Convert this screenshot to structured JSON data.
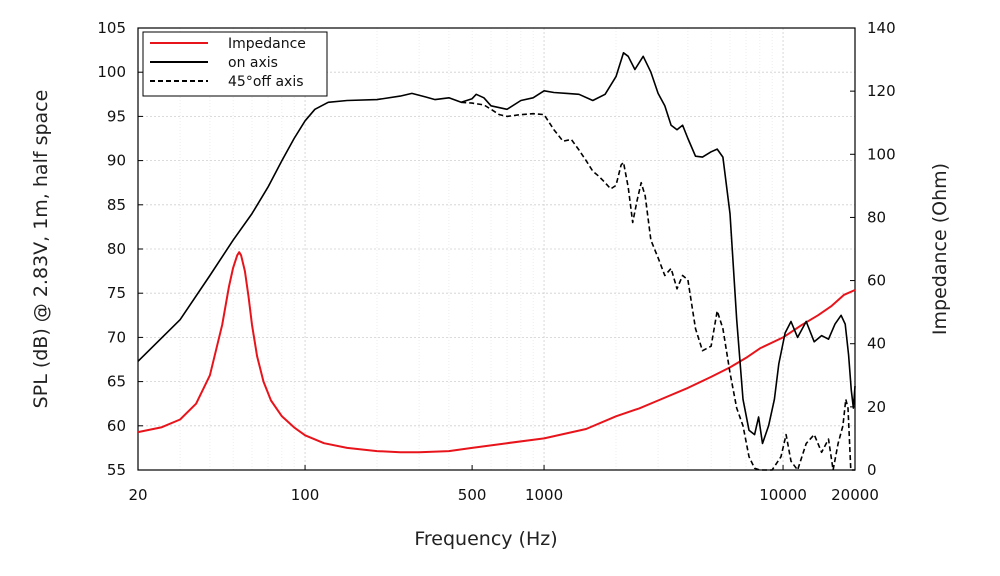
{
  "chart_data": {
    "type": "line",
    "title": "",
    "xlabel": "Frequency (Hz)",
    "ylabel_left": "SPL (dB) @ 2.83V, 1m, half space",
    "ylabel_right": "Impedance (Ohm)",
    "x_scale": "log",
    "xlim": [
      20,
      20000
    ],
    "ylim_left": [
      55,
      105
    ],
    "ylim_right": [
      0,
      140
    ],
    "grid": true,
    "legend_position": "top-left",
    "x_ticks": [
      {
        "value": 20,
        "label": "20"
      },
      {
        "value": 100,
        "label": "100"
      },
      {
        "value": 500,
        "label": "500"
      },
      {
        "value": 1000,
        "label": "1000"
      },
      {
        "value": 10000,
        "label": "10000"
      },
      {
        "value": 20000,
        "label": "20000"
      }
    ],
    "y_ticks_left": [
      "55",
      "60",
      "65",
      "70",
      "75",
      "80",
      "85",
      "90",
      "95",
      "100",
      "105"
    ],
    "y_ticks_right": [
      "0",
      "20",
      "40",
      "60",
      "80",
      "100",
      "120",
      "140"
    ],
    "series": [
      {
        "name": "Impedance",
        "axis": "right",
        "color": "#e8141b",
        "dash": "solid",
        "points": [
          [
            20,
            12
          ],
          [
            25,
            13.5
          ],
          [
            30,
            16
          ],
          [
            35,
            21
          ],
          [
            40,
            30
          ],
          [
            45,
            46
          ],
          [
            48,
            58
          ],
          [
            50,
            64
          ],
          [
            52,
            68
          ],
          [
            53,
            69
          ],
          [
            54,
            68
          ],
          [
            56,
            63
          ],
          [
            58,
            55
          ],
          [
            60,
            46
          ],
          [
            63,
            36
          ],
          [
            67,
            28
          ],
          [
            72,
            22
          ],
          [
            80,
            17
          ],
          [
            90,
            13.5
          ],
          [
            100,
            11
          ],
          [
            120,
            8.5
          ],
          [
            150,
            7
          ],
          [
            200,
            6
          ],
          [
            250,
            5.6
          ],
          [
            300,
            5.6
          ],
          [
            400,
            6
          ],
          [
            500,
            7
          ],
          [
            700,
            8.5
          ],
          [
            1000,
            10
          ],
          [
            1500,
            13
          ],
          [
            2000,
            17
          ],
          [
            2500,
            19.5
          ],
          [
            3000,
            22
          ],
          [
            4000,
            26
          ],
          [
            5000,
            29.5
          ],
          [
            6000,
            32.5
          ],
          [
            7000,
            35.5
          ],
          [
            8000,
            38.5
          ],
          [
            10000,
            42
          ],
          [
            12000,
            46
          ],
          [
            14000,
            49
          ],
          [
            16000,
            52
          ],
          [
            18000,
            55.5
          ],
          [
            20000,
            57
          ]
        ]
      },
      {
        "name": "on axis",
        "axis": "left",
        "color": "#000000",
        "dash": "solid",
        "points": [
          [
            20,
            67.3
          ],
          [
            30,
            72
          ],
          [
            40,
            77
          ],
          [
            50,
            81
          ],
          [
            60,
            84
          ],
          [
            70,
            87
          ],
          [
            80,
            90
          ],
          [
            90,
            92.5
          ],
          [
            100,
            94.5
          ],
          [
            110,
            95.8
          ],
          [
            125,
            96.6
          ],
          [
            150,
            96.8
          ],
          [
            200,
            96.9
          ],
          [
            250,
            97.3
          ],
          [
            280,
            97.6
          ],
          [
            320,
            97.2
          ],
          [
            350,
            96.9
          ],
          [
            400,
            97.1
          ],
          [
            450,
            96.6
          ],
          [
            500,
            97
          ],
          [
            520,
            97.5
          ],
          [
            560,
            97.1
          ],
          [
            600,
            96.2
          ],
          [
            700,
            95.8
          ],
          [
            800,
            96.8
          ],
          [
            900,
            97.1
          ],
          [
            1000,
            97.9
          ],
          [
            1100,
            97.7
          ],
          [
            1250,
            97.6
          ],
          [
            1400,
            97.5
          ],
          [
            1600,
            96.8
          ],
          [
            1800,
            97.5
          ],
          [
            2000,
            99.5
          ],
          [
            2150,
            102.2
          ],
          [
            2250,
            101.8
          ],
          [
            2400,
            100.3
          ],
          [
            2600,
            101.8
          ],
          [
            2800,
            100
          ],
          [
            3000,
            97.6
          ],
          [
            3200,
            96.2
          ],
          [
            3400,
            94
          ],
          [
            3600,
            93.5
          ],
          [
            3800,
            94
          ],
          [
            4000,
            92.5
          ],
          [
            4300,
            90.5
          ],
          [
            4600,
            90.4
          ],
          [
            5000,
            91
          ],
          [
            5300,
            91.3
          ],
          [
            5600,
            90.4
          ],
          [
            6000,
            84
          ],
          [
            6400,
            72
          ],
          [
            6800,
            63
          ],
          [
            7200,
            59.5
          ],
          [
            7600,
            59
          ],
          [
            7900,
            61
          ],
          [
            8200,
            58
          ],
          [
            8700,
            60
          ],
          [
            9200,
            63
          ],
          [
            9600,
            67
          ],
          [
            10200,
            70.5
          ],
          [
            10800,
            71.8
          ],
          [
            11500,
            70
          ],
          [
            12500,
            71.8
          ],
          [
            13500,
            69.5
          ],
          [
            14500,
            70.2
          ],
          [
            15500,
            69.8
          ],
          [
            16500,
            71.5
          ],
          [
            17500,
            72.5
          ],
          [
            18200,
            71.5
          ],
          [
            18800,
            68
          ],
          [
            19300,
            64
          ],
          [
            19700,
            62
          ],
          [
            20000,
            64.5
          ]
        ]
      },
      {
        "name": "45°off axis",
        "axis": "left",
        "color": "#000000",
        "dash": "dashed",
        "points": [
          [
            450,
            96.6
          ],
          [
            500,
            96.5
          ],
          [
            560,
            96.3
          ],
          [
            600,
            95.8
          ],
          [
            650,
            95.2
          ],
          [
            700,
            95
          ],
          [
            800,
            95.2
          ],
          [
            900,
            95.3
          ],
          [
            1000,
            95.2
          ],
          [
            1100,
            93.5
          ],
          [
            1200,
            92.2
          ],
          [
            1300,
            92.4
          ],
          [
            1400,
            91.2
          ],
          [
            1500,
            90
          ],
          [
            1600,
            88.8
          ],
          [
            1700,
            88.2
          ],
          [
            1800,
            87.5
          ],
          [
            1900,
            86.8
          ],
          [
            2000,
            87.2
          ],
          [
            2100,
            89.5
          ],
          [
            2150,
            89.8
          ],
          [
            2250,
            87
          ],
          [
            2350,
            83
          ],
          [
            2450,
            85.5
          ],
          [
            2550,
            87.5
          ],
          [
            2650,
            86
          ],
          [
            2800,
            81
          ],
          [
            3000,
            79
          ],
          [
            3200,
            77
          ],
          [
            3400,
            77.8
          ],
          [
            3600,
            75.5
          ],
          [
            3800,
            77
          ],
          [
            4000,
            76.5
          ],
          [
            4300,
            71
          ],
          [
            4600,
            68.5
          ],
          [
            5000,
            69
          ],
          [
            5300,
            73
          ],
          [
            5600,
            71
          ],
          [
            6000,
            66
          ],
          [
            6400,
            62
          ],
          [
            6800,
            60
          ],
          [
            7200,
            56.5
          ],
          [
            7600,
            55.2
          ],
          [
            8000,
            55
          ],
          [
            9000,
            55
          ],
          [
            9800,
            56.5
          ],
          [
            10300,
            59
          ],
          [
            10800,
            56
          ],
          [
            11500,
            55
          ],
          [
            12500,
            58
          ],
          [
            13500,
            59
          ],
          [
            14500,
            57
          ],
          [
            15500,
            58.5
          ],
          [
            16200,
            55
          ],
          [
            17000,
            58
          ],
          [
            17800,
            60
          ],
          [
            18300,
            63
          ],
          [
            18700,
            62
          ],
          [
            19200,
            55
          ],
          [
            20000,
            55
          ]
        ]
      }
    ]
  }
}
